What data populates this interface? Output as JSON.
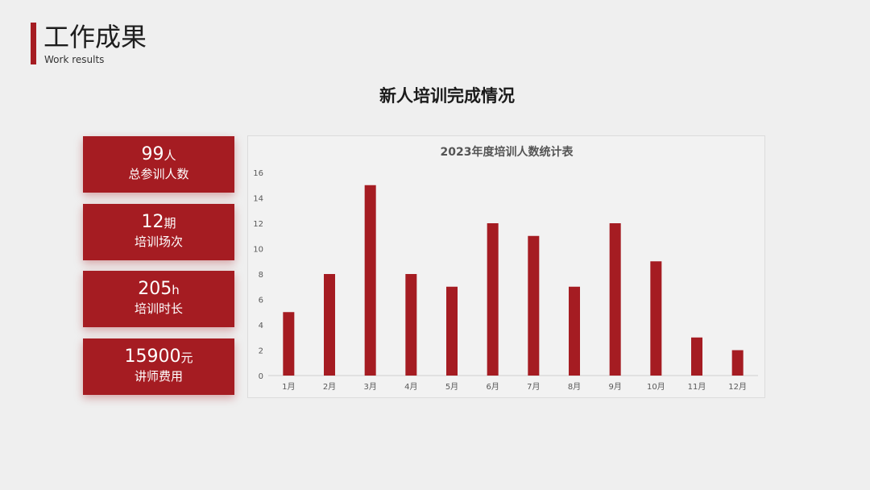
{
  "header": {
    "title": "工作成果",
    "subtitle": "Work results"
  },
  "section_title": "新人培训完成情况",
  "stats": [
    {
      "value": "99",
      "unit": "人",
      "label": "总参训人数"
    },
    {
      "value": "12",
      "unit": "期",
      "label": "培训场次"
    },
    {
      "value": "205",
      "unit": "h",
      "label": "培训时长"
    },
    {
      "value": "15900",
      "unit": "元",
      "label": "讲师费用"
    }
  ],
  "colors": {
    "accent": "#a51c22",
    "background": "#efefef"
  },
  "chart_data": {
    "type": "bar",
    "title": "2023年度培训人数统计表",
    "categories": [
      "1月",
      "2月",
      "3月",
      "4月",
      "5月",
      "6月",
      "7月",
      "8月",
      "9月",
      "10月",
      "11月",
      "12月"
    ],
    "values": [
      5,
      8,
      15,
      8,
      7,
      12,
      11,
      7,
      12,
      9,
      3,
      2
    ],
    "y_ticks": [
      "0",
      "2",
      "4",
      "6",
      "8",
      "10",
      "12",
      "14",
      "16"
    ],
    "ylim": [
      0,
      16
    ],
    "xlabel": "",
    "ylabel": "",
    "grid": false,
    "legend": "none",
    "bar_color": "#a51c22"
  }
}
